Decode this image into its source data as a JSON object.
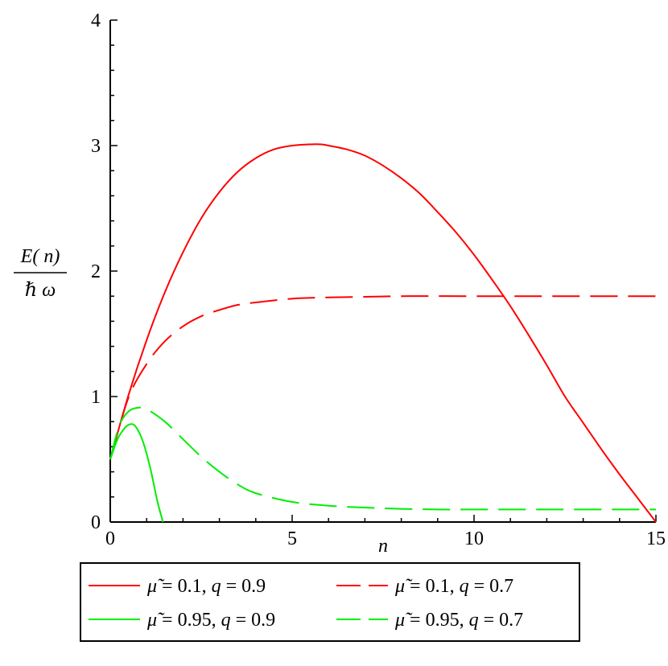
{
  "chart_data": {
    "type": "line",
    "title": "",
    "xlabel": "n",
    "ylabel": {
      "numerator": "E( n)",
      "denominator": "ℏ ω"
    },
    "xlim": [
      0,
      15
    ],
    "ylim": [
      0,
      4
    ],
    "x_ticks": [
      0,
      5,
      10,
      15
    ],
    "y_ticks": [
      0,
      1,
      2,
      3,
      4
    ],
    "grid": false,
    "legend_position": "bottom",
    "series": [
      {
        "name": "μ̃ = 0.1, q = 0.9",
        "color": "#ff0000",
        "dash": "solid",
        "x": [
          0,
          0.5,
          1,
          1.5,
          2,
          2.5,
          3,
          3.5,
          4,
          4.5,
          5,
          5.5,
          5.8,
          6,
          6.5,
          7,
          7.5,
          8,
          8.5,
          9,
          9.5,
          10,
          10.5,
          11,
          11.5,
          12,
          12.5,
          13,
          13.5,
          14,
          14.5,
          15
        ],
        "y": [
          0.5,
          1.01,
          1.45,
          1.83,
          2.15,
          2.42,
          2.63,
          2.79,
          2.9,
          2.97,
          3.0,
          3.01,
          3.01,
          3.0,
          2.97,
          2.92,
          2.84,
          2.74,
          2.62,
          2.47,
          2.31,
          2.13,
          1.93,
          1.72,
          1.49,
          1.25,
          1.0,
          0.79,
          0.58,
          0.38,
          0.19,
          0.0
        ]
      },
      {
        "name": "μ̃ = 0.1, q = 0.7",
        "color": "#ff0000",
        "dash": "long-dash",
        "x": [
          0,
          0.5,
          1,
          1.5,
          2,
          2.5,
          3,
          3.5,
          4,
          5,
          6,
          7,
          8,
          10,
          12,
          15
        ],
        "y": [
          0.5,
          0.99,
          1.26,
          1.44,
          1.56,
          1.64,
          1.69,
          1.73,
          1.75,
          1.78,
          1.79,
          1.795,
          1.8,
          1.8,
          1.8,
          1.8
        ]
      },
      {
        "name": "μ̃ = 0.95, q = 0.9",
        "color": "#00ee00",
        "dash": "solid",
        "x": [
          0,
          0.2,
          0.4,
          0.55,
          0.7,
          0.9,
          1.1,
          1.3,
          1.45
        ],
        "y": [
          0.5,
          0.66,
          0.75,
          0.78,
          0.76,
          0.64,
          0.43,
          0.16,
          0.0
        ]
      },
      {
        "name": "μ̃ = 0.95, q = 0.7",
        "color": "#00ee00",
        "dash": "long-dash",
        "x": [
          0,
          0.25,
          0.5,
          0.75,
          1,
          1.5,
          2,
          2.5,
          3,
          3.5,
          4,
          5,
          6,
          7,
          8,
          9,
          10,
          12,
          15
        ],
        "y": [
          0.5,
          0.77,
          0.88,
          0.91,
          0.9,
          0.8,
          0.66,
          0.52,
          0.4,
          0.3,
          0.23,
          0.16,
          0.13,
          0.115,
          0.105,
          0.1,
          0.1,
          0.1,
          0.1
        ]
      }
    ]
  },
  "legend": {
    "items": [
      {
        "mu": "μ̃",
        "rest": " = 0.1, ",
        "q": "q",
        "value": " = 0.9"
      },
      {
        "mu": "μ̃",
        "rest": " = 0.1, ",
        "q": "q",
        "value": " = 0.7"
      },
      {
        "mu": "μ̃",
        "rest": " = 0.95, ",
        "q": "q",
        "value": " = 0.9"
      },
      {
        "mu": "μ̃",
        "rest": " = 0.95, ",
        "q": "q",
        "value": " = 0.7"
      }
    ]
  }
}
